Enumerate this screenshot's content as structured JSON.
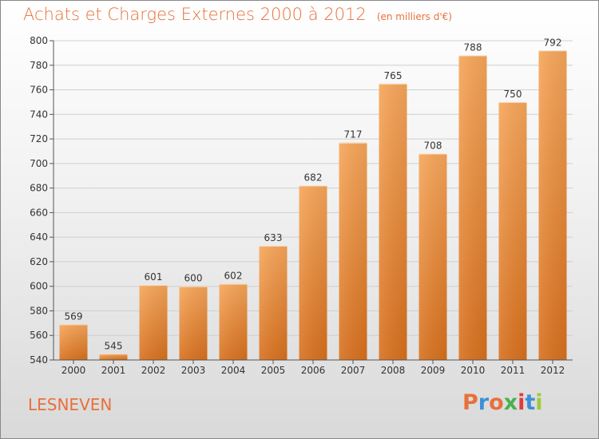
{
  "header": {
    "title": "Achats et Charges Externes 2000 à 2012",
    "unit": "(en milliers d'€)"
  },
  "footer": {
    "location": "LESNEVEN",
    "logo_text": "Proxiti",
    "logo_colors": [
      "#e8703a",
      "#3f8fd6",
      "#e8703a",
      "#4caf50",
      "#e33b3b",
      "#3f8fd6",
      "#9ccc3a"
    ]
  },
  "colors": {
    "bar_top": "#f7a65a",
    "bar_bottom": "#d8701d",
    "axis_text": "#333333",
    "grid": "#cfcfcf",
    "title": "#e8703a"
  },
  "chart_data": {
    "type": "bar",
    "title": "Achats et Charges Externes 2000 à 2012",
    "categories": [
      "2000",
      "2001",
      "2002",
      "2003",
      "2004",
      "2005",
      "2006",
      "2007",
      "2008",
      "2009",
      "2010",
      "2011",
      "2012"
    ],
    "values": [
      569,
      545,
      601,
      600,
      602,
      633,
      682,
      717,
      765,
      708,
      788,
      750,
      792
    ],
    "ylim": [
      540,
      800
    ],
    "yticks": [
      540,
      560,
      580,
      600,
      620,
      640,
      660,
      680,
      700,
      720,
      740,
      760,
      780,
      800
    ],
    "grid": true,
    "xlabel": "",
    "ylabel": ""
  }
}
